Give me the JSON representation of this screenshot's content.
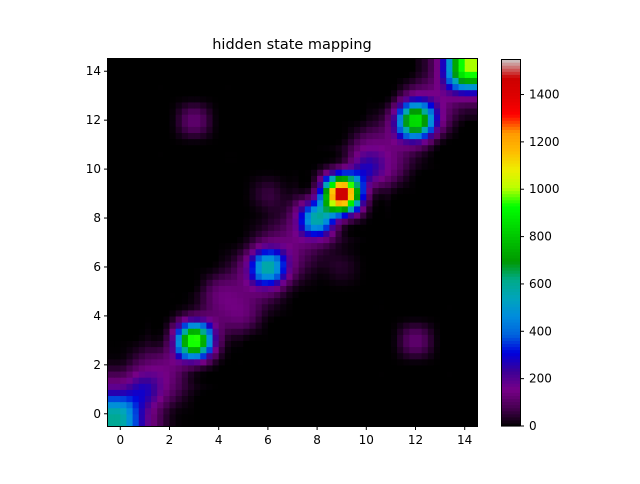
{
  "chart_data": {
    "type": "heatmap",
    "title": "hidden state mapping",
    "xlabel": "",
    "ylabel": "",
    "xlim": [
      -0.5,
      14.5
    ],
    "ylim": [
      -0.5,
      14.5
    ],
    "x_ticks": [
      0,
      2,
      4,
      6,
      8,
      10,
      12,
      14
    ],
    "y_ticks": [
      0,
      2,
      4,
      6,
      8,
      10,
      12,
      14
    ],
    "interpolation": "bicubic",
    "colormap": "nipy_spectral",
    "colorbar": {
      "range": [
        0,
        1550
      ],
      "ticks": [
        0,
        200,
        400,
        600,
        800,
        1000,
        1200,
        1400
      ]
    },
    "grid": false,
    "matrix": [
      [
        600,
        220,
        30,
        0,
        0,
        0,
        0,
        0,
        0,
        0,
        0,
        0,
        0,
        0,
        0
      ],
      [
        220,
        280,
        120,
        20,
        0,
        0,
        0,
        0,
        0,
        0,
        0,
        0,
        0,
        0,
        0
      ],
      [
        30,
        120,
        140,
        120,
        10,
        0,
        0,
        0,
        0,
        0,
        0,
        0,
        0,
        0,
        0
      ],
      [
        0,
        20,
        120,
        1000,
        140,
        10,
        0,
        0,
        0,
        0,
        0,
        0,
        120,
        0,
        0
      ],
      [
        0,
        0,
        10,
        140,
        120,
        130,
        20,
        0,
        0,
        0,
        0,
        0,
        0,
        0,
        0
      ],
      [
        0,
        0,
        0,
        10,
        130,
        130,
        140,
        20,
        0,
        0,
        0,
        0,
        0,
        0,
        0
      ],
      [
        0,
        0,
        0,
        0,
        20,
        140,
        600,
        150,
        30,
        40,
        0,
        0,
        0,
        0,
        0
      ],
      [
        0,
        0,
        0,
        0,
        0,
        20,
        150,
        140,
        130,
        30,
        0,
        0,
        0,
        0,
        0
      ],
      [
        0,
        0,
        0,
        0,
        0,
        0,
        30,
        130,
        600,
        220,
        20,
        0,
        0,
        0,
        0
      ],
      [
        0,
        0,
        0,
        0,
        0,
        0,
        60,
        30,
        220,
        1550,
        200,
        20,
        0,
        0,
        0
      ],
      [
        0,
        0,
        0,
        0,
        0,
        0,
        0,
        0,
        20,
        200,
        280,
        140,
        20,
        0,
        0
      ],
      [
        0,
        0,
        0,
        0,
        0,
        0,
        0,
        0,
        0,
        20,
        140,
        140,
        160,
        10,
        0
      ],
      [
        0,
        0,
        0,
        120,
        0,
        0,
        0,
        0,
        0,
        0,
        20,
        160,
        900,
        200,
        10
      ],
      [
        0,
        0,
        0,
        0,
        0,
        0,
        0,
        0,
        0,
        0,
        0,
        10,
        200,
        160,
        200
      ],
      [
        0,
        0,
        0,
        0,
        0,
        0,
        0,
        0,
        0,
        0,
        0,
        0,
        10,
        200,
        1000
      ]
    ]
  }
}
